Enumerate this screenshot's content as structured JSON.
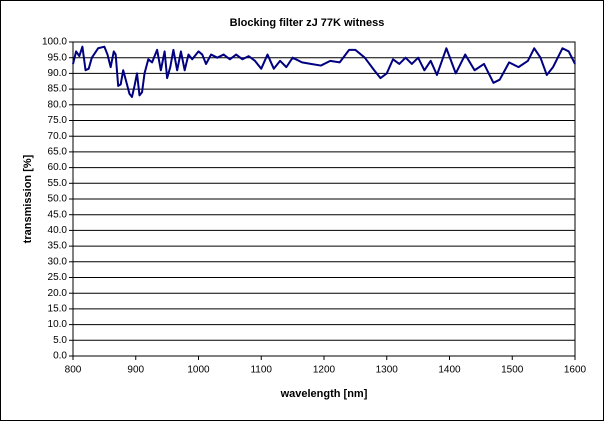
{
  "chart_data": {
    "type": "line",
    "title": "Blocking filter zJ 77K witness",
    "xlabel": "wavelength [nm]",
    "ylabel": "transmission [%]",
    "x": [
      800,
      805,
      810,
      815,
      820,
      825,
      830,
      840,
      850,
      855,
      860,
      865,
      868,
      872,
      876,
      880,
      884,
      890,
      894,
      898,
      902,
      906,
      910,
      914,
      920,
      926,
      934,
      940,
      946,
      950,
      955,
      960,
      966,
      972,
      978,
      984,
      990,
      1000,
      1006,
      1012,
      1020,
      1030,
      1040,
      1050,
      1060,
      1070,
      1080,
      1090,
      1100,
      1110,
      1120,
      1130,
      1140,
      1150,
      1165,
      1180,
      1195,
      1210,
      1225,
      1240,
      1250,
      1265,
      1280,
      1290,
      1300,
      1310,
      1320,
      1330,
      1340,
      1350,
      1360,
      1370,
      1380,
      1395,
      1410,
      1425,
      1440,
      1455,
      1470,
      1480,
      1495,
      1510,
      1525,
      1535,
      1545,
      1555,
      1565,
      1580,
      1590,
      1600
    ],
    "values": [
      93,
      97,
      95.5,
      98.5,
      91,
      91.5,
      95,
      98,
      98.5,
      96,
      92,
      97,
      96,
      86,
      86.5,
      91,
      88,
      83.5,
      82.5,
      86,
      90,
      83,
      84,
      90,
      94.5,
      93.5,
      97.5,
      91,
      97,
      88.5,
      92,
      97.5,
      91,
      97,
      91,
      96,
      94.5,
      97,
      96,
      93,
      96,
      95,
      96,
      94.5,
      96,
      94.5,
      95.5,
      94,
      91.5,
      96,
      91.5,
      94,
      92,
      95,
      93.5,
      93,
      92.5,
      94,
      93.5,
      97.5,
      97.5,
      95,
      91,
      88.5,
      90,
      94.5,
      93,
      95,
      93,
      95,
      91,
      94,
      89.5,
      98,
      90,
      96,
      91,
      93,
      87,
      88,
      93.5,
      92,
      94,
      98,
      95,
      89.5,
      92,
      98,
      97,
      93
    ],
    "color": "#000080",
    "xlim": [
      800,
      1600
    ],
    "xticks": [
      800,
      900,
      1000,
      1100,
      1200,
      1300,
      1400,
      1500,
      1600
    ],
    "ylim": [
      0,
      100
    ],
    "yticks": [
      {
        "value": 0,
        "label": "0.0"
      },
      {
        "value": 5,
        "label": "5.0"
      },
      {
        "value": 10,
        "label": "10.0"
      },
      {
        "value": 15,
        "label": "15.0"
      },
      {
        "value": 20,
        "label": "20.0"
      },
      {
        "value": 25,
        "label": "25.0"
      },
      {
        "value": 30,
        "label": "30.0"
      },
      {
        "value": 35,
        "label": "35.0"
      },
      {
        "value": 40,
        "label": "40.0"
      },
      {
        "value": 45,
        "label": "45.0"
      },
      {
        "value": 50,
        "label": "50.0"
      },
      {
        "value": 55,
        "label": "55.0"
      },
      {
        "value": 60,
        "label": "60.0"
      },
      {
        "value": 65,
        "label": "65.0"
      },
      {
        "value": 70,
        "label": "70.0"
      },
      {
        "value": 75,
        "label": "75.0"
      },
      {
        "value": 80,
        "label": "80.0"
      },
      {
        "value": 85,
        "label": "85.0"
      },
      {
        "value": 90,
        "label": "90.0"
      },
      {
        "value": 95,
        "label": "95.0"
      },
      {
        "value": 100,
        "label": "100.0"
      }
    ],
    "grid": true
  }
}
